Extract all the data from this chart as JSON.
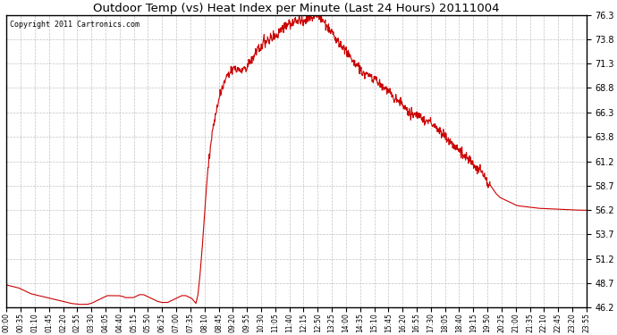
{
  "title": "Outdoor Temp (vs) Heat Index per Minute (Last 24 Hours) 20111004",
  "copyright": "Copyright 2011 Cartronics.com",
  "line_color": "#cc0000",
  "background_color": "#ffffff",
  "grid_color": "#aaaaaa",
  "yticks": [
    46.2,
    48.7,
    51.2,
    53.7,
    56.2,
    58.7,
    61.2,
    63.8,
    66.3,
    68.8,
    71.3,
    73.8,
    76.3
  ],
  "ymin": 46.2,
  "ymax": 76.3,
  "xtick_labels": [
    "00:00",
    "00:35",
    "01:10",
    "01:45",
    "02:20",
    "02:55",
    "03:30",
    "04:05",
    "04:40",
    "05:15",
    "05:50",
    "06:25",
    "07:00",
    "07:35",
    "08:10",
    "08:45",
    "09:20",
    "09:55",
    "10:30",
    "11:05",
    "11:40",
    "12:15",
    "12:50",
    "13:25",
    "14:00",
    "14:35",
    "15:10",
    "15:45",
    "16:20",
    "16:55",
    "17:30",
    "18:05",
    "18:40",
    "19:15",
    "19:50",
    "20:25",
    "21:00",
    "21:35",
    "22:10",
    "22:45",
    "23:20",
    "23:55"
  ],
  "control_points": [
    [
      0,
      48.5
    ],
    [
      10,
      48.4
    ],
    [
      20,
      48.3
    ],
    [
      30,
      48.2
    ],
    [
      40,
      48.0
    ],
    [
      50,
      47.8
    ],
    [
      60,
      47.6
    ],
    [
      70,
      47.5
    ],
    [
      80,
      47.4
    ],
    [
      90,
      47.3
    ],
    [
      100,
      47.2
    ],
    [
      110,
      47.1
    ],
    [
      120,
      47.0
    ],
    [
      130,
      46.9
    ],
    [
      140,
      46.8
    ],
    [
      150,
      46.7
    ],
    [
      160,
      46.6
    ],
    [
      170,
      46.55
    ],
    [
      180,
      46.5
    ],
    [
      190,
      46.5
    ],
    [
      200,
      46.5
    ],
    [
      210,
      46.6
    ],
    [
      220,
      46.8
    ],
    [
      230,
      47.0
    ],
    [
      240,
      47.2
    ],
    [
      245,
      47.3
    ],
    [
      250,
      47.4
    ],
    [
      255,
      47.4
    ],
    [
      260,
      47.4
    ],
    [
      270,
      47.4
    ],
    [
      280,
      47.4
    ],
    [
      290,
      47.3
    ],
    [
      295,
      47.2
    ],
    [
      300,
      47.2
    ],
    [
      305,
      47.2
    ],
    [
      310,
      47.2
    ],
    [
      315,
      47.2
    ],
    [
      320,
      47.3
    ],
    [
      325,
      47.4
    ],
    [
      330,
      47.5
    ],
    [
      335,
      47.5
    ],
    [
      340,
      47.5
    ],
    [
      345,
      47.4
    ],
    [
      350,
      47.3
    ],
    [
      355,
      47.2
    ],
    [
      360,
      47.1
    ],
    [
      365,
      47.0
    ],
    [
      370,
      46.9
    ],
    [
      375,
      46.8
    ],
    [
      380,
      46.75
    ],
    [
      385,
      46.7
    ],
    [
      390,
      46.7
    ],
    [
      395,
      46.7
    ],
    [
      400,
      46.7
    ],
    [
      405,
      46.8
    ],
    [
      410,
      46.9
    ],
    [
      415,
      47.0
    ],
    [
      420,
      47.1
    ],
    [
      425,
      47.2
    ],
    [
      430,
      47.3
    ],
    [
      435,
      47.4
    ],
    [
      440,
      47.4
    ],
    [
      445,
      47.4
    ],
    [
      450,
      47.3
    ],
    [
      455,
      47.2
    ],
    [
      460,
      47.1
    ],
    [
      462,
      47.0
    ],
    [
      464,
      46.9
    ],
    [
      466,
      46.8
    ],
    [
      468,
      46.7
    ],
    [
      470,
      46.6
    ],
    [
      475,
      47.5
    ],
    [
      480,
      49.5
    ],
    [
      485,
      52.0
    ],
    [
      490,
      55.0
    ],
    [
      495,
      58.0
    ],
    [
      500,
      60.5
    ],
    [
      505,
      62.5
    ],
    [
      510,
      64.0
    ],
    [
      515,
      65.2
    ],
    [
      520,
      66.3
    ],
    [
      525,
      67.2
    ],
    [
      530,
      68.0
    ],
    [
      535,
      68.7
    ],
    [
      540,
      69.3
    ],
    [
      545,
      69.8
    ],
    [
      550,
      70.2
    ],
    [
      555,
      70.5
    ],
    [
      560,
      70.7
    ],
    [
      565,
      70.8
    ],
    [
      570,
      70.8
    ],
    [
      575,
      70.7
    ],
    [
      580,
      70.6
    ],
    [
      585,
      70.7
    ],
    [
      590,
      70.8
    ],
    [
      595,
      71.0
    ],
    [
      600,
      71.3
    ],
    [
      605,
      71.6
    ],
    [
      610,
      71.9
    ],
    [
      615,
      72.2
    ],
    [
      620,
      72.5
    ],
    [
      625,
      72.8
    ],
    [
      630,
      73.0
    ],
    [
      635,
      73.3
    ],
    [
      640,
      73.5
    ],
    [
      645,
      73.7
    ],
    [
      650,
      73.8
    ],
    [
      655,
      73.9
    ],
    [
      660,
      74.0
    ],
    [
      665,
      74.1
    ],
    [
      670,
      74.2
    ],
    [
      675,
      74.4
    ],
    [
      680,
      74.6
    ],
    [
      685,
      74.8
    ],
    [
      690,
      75.0
    ],
    [
      695,
      75.2
    ],
    [
      700,
      75.4
    ],
    [
      705,
      75.5
    ],
    [
      710,
      75.6
    ],
    [
      715,
      75.65
    ],
    [
      720,
      75.7
    ],
    [
      725,
      75.75
    ],
    [
      730,
      75.8
    ],
    [
      735,
      75.85
    ],
    [
      740,
      75.9
    ],
    [
      745,
      75.95
    ],
    [
      750,
      76.0
    ],
    [
      755,
      76.05
    ],
    [
      760,
      76.1
    ],
    [
      765,
      76.15
    ],
    [
      770,
      76.2
    ],
    [
      775,
      76.15
    ],
    [
      780,
      76.0
    ],
    [
      785,
      75.8
    ],
    [
      790,
      75.5
    ],
    [
      795,
      75.2
    ],
    [
      800,
      74.9
    ],
    [
      805,
      74.6
    ],
    [
      810,
      74.2
    ],
    [
      815,
      73.9
    ],
    [
      820,
      73.6
    ],
    [
      825,
      73.4
    ],
    [
      830,
      73.2
    ],
    [
      835,
      73.0
    ],
    [
      840,
      72.8
    ],
    [
      845,
      72.5
    ],
    [
      850,
      72.2
    ],
    [
      855,
      71.8
    ],
    [
      860,
      71.5
    ],
    [
      865,
      71.2
    ],
    [
      870,
      71.0
    ],
    [
      875,
      70.8
    ],
    [
      880,
      70.6
    ],
    [
      885,
      70.4
    ],
    [
      890,
      70.3
    ],
    [
      895,
      70.2
    ],
    [
      900,
      70.1
    ],
    [
      905,
      70.0
    ],
    [
      910,
      69.9
    ],
    [
      915,
      69.7
    ],
    [
      920,
      69.5
    ],
    [
      925,
      69.3
    ],
    [
      930,
      69.1
    ],
    [
      935,
      68.9
    ],
    [
      940,
      68.7
    ],
    [
      945,
      68.5
    ],
    [
      950,
      68.3
    ],
    [
      955,
      68.1
    ],
    [
      960,
      67.9
    ],
    [
      965,
      67.7
    ],
    [
      970,
      67.5
    ],
    [
      975,
      67.3
    ],
    [
      980,
      67.1
    ],
    [
      985,
      66.9
    ],
    [
      990,
      66.7
    ],
    [
      995,
      66.5
    ],
    [
      1000,
      66.3
    ],
    [
      1005,
      66.2
    ],
    [
      1010,
      66.1
    ],
    [
      1015,
      66.0
    ],
    [
      1020,
      65.9
    ],
    [
      1025,
      65.8
    ],
    [
      1030,
      65.7
    ],
    [
      1035,
      65.6
    ],
    [
      1040,
      65.5
    ],
    [
      1045,
      65.4
    ],
    [
      1050,
      65.3
    ],
    [
      1055,
      65.2
    ],
    [
      1060,
      65.0
    ],
    [
      1065,
      64.8
    ],
    [
      1070,
      64.6
    ],
    [
      1075,
      64.4
    ],
    [
      1080,
      64.2
    ],
    [
      1085,
      64.0
    ],
    [
      1090,
      63.7
    ],
    [
      1095,
      63.5
    ],
    [
      1100,
      63.3
    ],
    [
      1105,
      63.1
    ],
    [
      1110,
      62.9
    ],
    [
      1115,
      62.7
    ],
    [
      1120,
      62.5
    ],
    [
      1125,
      62.3
    ],
    [
      1130,
      62.1
    ],
    [
      1135,
      61.9
    ],
    [
      1140,
      61.7
    ],
    [
      1145,
      61.5
    ],
    [
      1150,
      61.3
    ],
    [
      1155,
      61.1
    ],
    [
      1160,
      60.9
    ],
    [
      1165,
      60.7
    ],
    [
      1170,
      60.5
    ],
    [
      1175,
      60.3
    ],
    [
      1180,
      60.0
    ],
    [
      1185,
      59.7
    ],
    [
      1190,
      59.4
    ],
    [
      1195,
      59.1
    ],
    [
      1200,
      58.8
    ],
    [
      1205,
      58.5
    ],
    [
      1210,
      58.2
    ],
    [
      1215,
      57.9
    ],
    [
      1220,
      57.7
    ],
    [
      1225,
      57.5
    ],
    [
      1230,
      57.4
    ],
    [
      1235,
      57.3
    ],
    [
      1240,
      57.2
    ],
    [
      1245,
      57.1
    ],
    [
      1250,
      57.0
    ],
    [
      1255,
      56.9
    ],
    [
      1260,
      56.8
    ],
    [
      1265,
      56.7
    ],
    [
      1270,
      56.65
    ],
    [
      1280,
      56.6
    ],
    [
      1290,
      56.55
    ],
    [
      1300,
      56.5
    ],
    [
      1310,
      56.45
    ],
    [
      1320,
      56.4
    ],
    [
      1330,
      56.38
    ],
    [
      1340,
      56.36
    ],
    [
      1350,
      56.34
    ],
    [
      1360,
      56.32
    ],
    [
      1370,
      56.3
    ],
    [
      1380,
      56.28
    ],
    [
      1390,
      56.26
    ],
    [
      1400,
      56.24
    ],
    [
      1410,
      56.22
    ],
    [
      1420,
      56.21
    ],
    [
      1430,
      56.2
    ],
    [
      1439,
      56.2
    ]
  ]
}
